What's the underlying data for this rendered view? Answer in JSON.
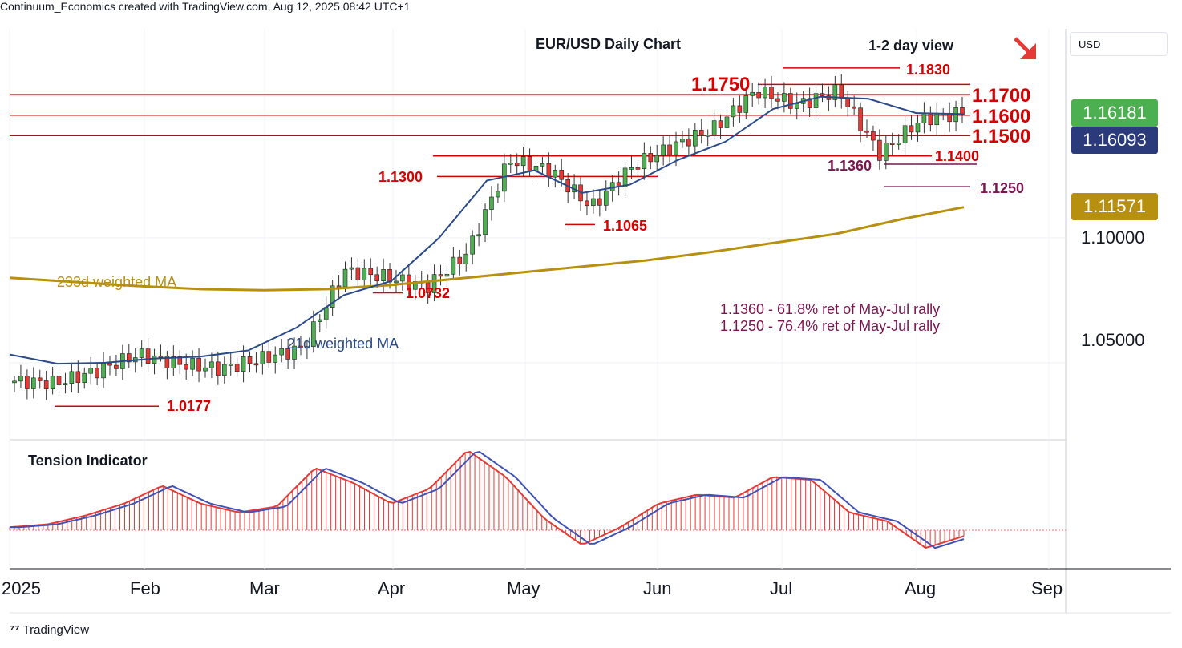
{
  "header": {
    "attribution": "Continuum_Economics created with TradingView.com, Aug 12, 2025 08:42 UTC+1",
    "currency": "USD",
    "footer_brand": "TradingView"
  },
  "chart_data": {
    "type": "candlestick",
    "title": "EUR/USD Daily Chart",
    "view_label": "1-2 day view",
    "view_arrow": "down-right",
    "y_axis": {
      "ticks": [
        "1.10000",
        "1.05000"
      ],
      "ylim": [
        1.0,
        1.2
      ]
    },
    "x_axis": {
      "ticks": [
        "2025",
        "Feb",
        "Mar",
        "Apr",
        "May",
        "Jun",
        "Jul",
        "Aug",
        "Sep"
      ]
    },
    "price_tags": [
      {
        "value": "1.16181",
        "color": "#4caf50"
      },
      {
        "value": "1.16093",
        "color": "#2a3a7a"
      },
      {
        "value": "1.11571",
        "color": "#b8900f"
      }
    ],
    "levels": [
      {
        "label": "1.1830",
        "value": 1.183
      },
      {
        "label": "1.1750",
        "value": 1.175
      },
      {
        "label": "1.1700",
        "value": 1.17
      },
      {
        "label": "1.1600",
        "value": 1.16
      },
      {
        "label": "1.1500",
        "value": 1.15
      },
      {
        "label": "1.1400",
        "value": 1.14
      },
      {
        "label": "1.1300",
        "value": 1.13
      },
      {
        "label": "1.1360",
        "value": 1.136
      },
      {
        "label": "1.1250",
        "value": 1.125
      },
      {
        "label": "1.1065",
        "value": 1.1065
      },
      {
        "label": "1.0732",
        "value": 1.0732
      },
      {
        "label": "1.0177",
        "value": 1.0177
      }
    ],
    "annotations": [
      "1.1360 - 61.8% ret of May-Jul rally",
      "1.1250 - 76.4% ret of May-Jul rally"
    ],
    "series": [
      {
        "name": "233d weighted MA",
        "color": "#b8900f",
        "values": [
          1.0805,
          1.0785,
          1.0765,
          1.075,
          1.0745,
          1.075,
          1.077,
          1.08,
          1.083,
          1.086,
          1.089,
          1.093,
          1.0975,
          1.102,
          1.109,
          1.115
        ]
      },
      {
        "name": "21d weighted MA",
        "color": "#2a4a8a",
        "values": [
          1.043,
          1.0385,
          1.039,
          1.041,
          1.042,
          1.045,
          1.056,
          1.072,
          1.079,
          1.1,
          1.128,
          1.133,
          1.122,
          1.126,
          1.138,
          1.147,
          1.163,
          1.169,
          1.168,
          1.161,
          1.1605
        ]
      },
      {
        "name": "EUR/USD close",
        "color": "#4caf50",
        "values": [
          1.03,
          1.029,
          1.035,
          1.043,
          1.0385,
          1.036,
          1.041,
          1.046,
          1.084,
          1.081,
          1.076,
          1.093,
          1.138,
          1.133,
          1.115,
          1.135,
          1.145,
          1.154,
          1.172,
          1.165,
          1.172,
          1.141,
          1.158,
          1.161
        ]
      }
    ],
    "indicator": {
      "title": "Tension Indicator",
      "values": [
        0.1,
        0.2,
        0.5,
        0.9,
        1.5,
        0.9,
        0.6,
        0.8,
        2.1,
        1.6,
        0.9,
        1.4,
        2.7,
        1.8,
        0.4,
        -0.5,
        0.1,
        0.9,
        1.2,
        1.1,
        1.8,
        1.7,
        0.6,
        0.3,
        -0.6,
        -0.2
      ]
    }
  }
}
